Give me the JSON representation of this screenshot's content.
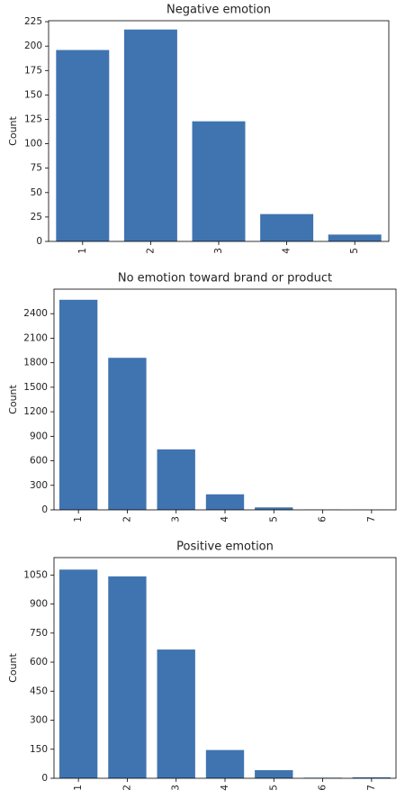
{
  "chart_data": [
    {
      "type": "bar",
      "title": "Negative emotion",
      "xlabel": "",
      "ylabel": "Count",
      "categories": [
        "1",
        "2",
        "3",
        "4",
        "5"
      ],
      "values": [
        196,
        217,
        123,
        28,
        7
      ],
      "yticks": [
        0,
        25,
        50,
        75,
        100,
        125,
        150,
        175,
        200,
        225
      ],
      "ylim": [
        0,
        226
      ],
      "bar_color": "#4074b0",
      "grid": false,
      "legend": "none"
    },
    {
      "type": "bar",
      "title": "No emotion toward brand or product",
      "xlabel": "",
      "ylabel": "Count",
      "categories": [
        "1",
        "2",
        "3",
        "4",
        "5",
        "6",
        "7"
      ],
      "values": [
        2570,
        1860,
        740,
        190,
        30,
        3,
        2
      ],
      "yticks": [
        0,
        300,
        600,
        900,
        1200,
        1500,
        1800,
        2100,
        2400
      ],
      "ylim": [
        0,
        2700
      ],
      "bar_color": "#4074b0",
      "grid": false,
      "legend": "none"
    },
    {
      "type": "bar",
      "title": "Positive emotion",
      "xlabel": "",
      "ylabel": "Count",
      "categories": [
        "1",
        "2",
        "3",
        "4",
        "5",
        "6",
        "7"
      ],
      "values": [
        1078,
        1043,
        665,
        146,
        42,
        3,
        5
      ],
      "yticks": [
        0,
        150,
        300,
        450,
        600,
        750,
        900,
        1050
      ],
      "ylim": [
        0,
        1140
      ],
      "bar_color": "#4074b0",
      "grid": false,
      "legend": "none"
    }
  ]
}
